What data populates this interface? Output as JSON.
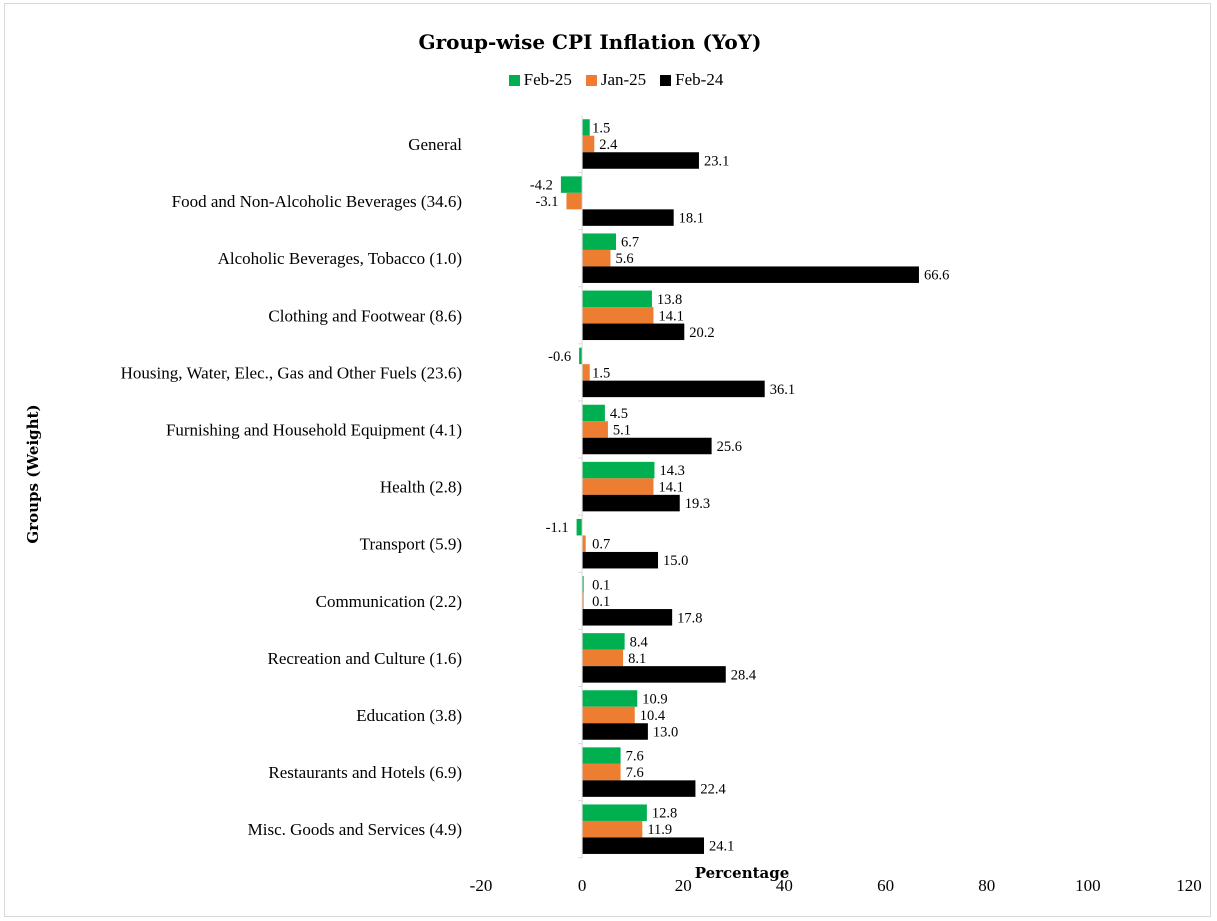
{
  "chart_data": {
    "type": "bar",
    "orientation": "horizontal",
    "title": "Group-wise CPI Inflation  (YoY)",
    "xlabel": "Percentage",
    "ylabel": "Groups (Weight)",
    "xlim": [
      -20,
      120
    ],
    "xticks": [
      "-20",
      "0",
      "20",
      "40",
      "60",
      "80",
      "100",
      "120"
    ],
    "grid": false,
    "legend_position": "top",
    "categories": [
      "General",
      "Food and Non-Alcoholic Beverages (34.6)",
      "Alcoholic Beverages, Tobacco (1.0)",
      "Clothing and Footwear (8.6)",
      "Housing, Water, Elec., Gas and Other Fuels (23.6)",
      "Furnishing and Household Equipment (4.1)",
      "Health (2.8)",
      "Transport (5.9)",
      "Communication (2.2)",
      "Recreation and Culture (1.6)",
      "Education (3.8)",
      "Restaurants and Hotels (6.9)",
      "Misc. Goods and Services (4.9)"
    ],
    "series": [
      {
        "name": "Feb-25",
        "color": "#00b050",
        "values": [
          1.5,
          -4.2,
          6.7,
          13.8,
          -0.6,
          4.5,
          14.3,
          -1.1,
          0.1,
          8.4,
          10.9,
          7.6,
          12.8
        ],
        "labels": [
          "1.5",
          "-4.2",
          "6.7",
          "13.8",
          "-0.6",
          "4.5",
          "14.3",
          "-1.1",
          "0.1",
          "8.4",
          "10.9",
          "7.6",
          "12.8"
        ]
      },
      {
        "name": "Jan-25",
        "color": "#ed7d31",
        "values": [
          2.4,
          -3.1,
          5.6,
          14.1,
          1.5,
          5.1,
          14.1,
          0.7,
          0.1,
          8.1,
          10.4,
          7.6,
          11.9
        ],
        "labels": [
          "2.4",
          "-3.1",
          "5.6",
          "14.1",
          "1.5",
          "5.1",
          "14.1",
          "0.7",
          "0.1",
          "8.1",
          "10.4",
          "7.6",
          "11.9"
        ]
      },
      {
        "name": "Feb-24",
        "color": "#000000",
        "values": [
          23.1,
          18.1,
          66.6,
          20.2,
          36.1,
          25.6,
          19.3,
          15.0,
          17.8,
          28.4,
          13.0,
          22.4,
          24.1
        ],
        "labels": [
          "23.1",
          "18.1",
          "66.6",
          "20.2",
          "36.1",
          "25.6",
          "19.3",
          "15.0",
          "17.8",
          "28.4",
          "13.0",
          "22.4",
          "24.1"
        ]
      }
    ]
  }
}
